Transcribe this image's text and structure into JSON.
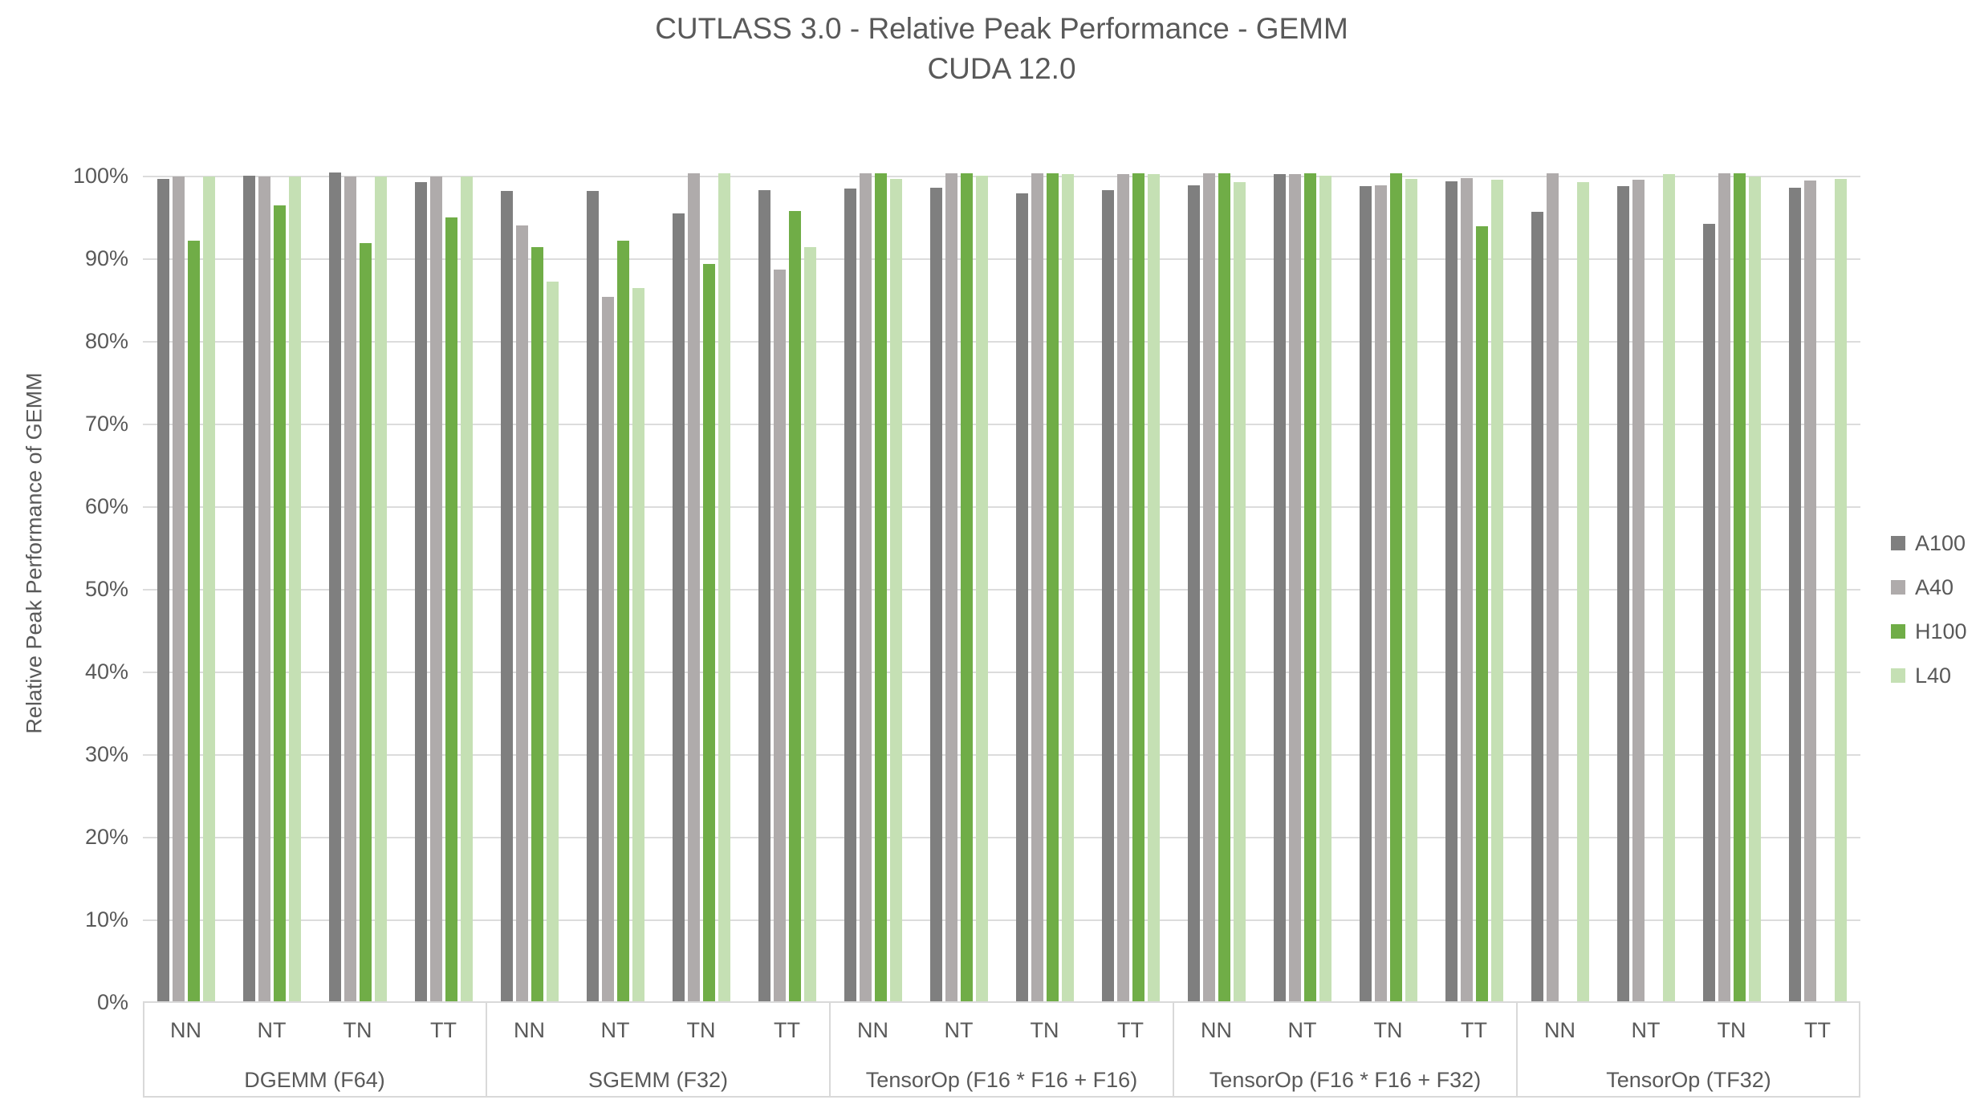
{
  "chart_data": {
    "type": "bar",
    "title": "CUTLASS 3.0 - Relative Peak Performance - GEMM",
    "subtitle": "CUDA 12.0",
    "ylabel": "Relative Peak Performance of GEMM",
    "ylim": [
      0,
      100
    ],
    "ytick_step": 10,
    "yticks": [
      "0%",
      "10%",
      "20%",
      "30%",
      "40%",
      "50%",
      "60%",
      "70%",
      "80%",
      "90%",
      "100%"
    ],
    "grid": true,
    "legend_position": "right",
    "categories": [
      "NN",
      "NT",
      "TN",
      "TT"
    ],
    "groups": [
      "DGEMM (F64)",
      "SGEMM (F32)",
      "TensorOp (F16 * F16 + F16)",
      "TensorOp (F16 * F16 + F32)",
      "TensorOp (TF32)"
    ],
    "value_unit": "percent",
    "series": [
      {
        "name": "A100",
        "color": "#7F7F7F",
        "values": [
          [
            99.7,
            100.1,
            100.5,
            99.3
          ],
          [
            98.3,
            98.3,
            95.5,
            98.4
          ],
          [
            98.5,
            98.6,
            98.0,
            98.4
          ],
          [
            98.9,
            100.3,
            98.8,
            99.4
          ],
          [
            95.7,
            98.8,
            94.3,
            98.6
          ]
        ]
      },
      {
        "name": "A40",
        "color": "#AFABAB",
        "values": [
          [
            100.0,
            100.0,
            100.0,
            100.0
          ],
          [
            94.1,
            85.4,
            100.4,
            88.7
          ],
          [
            100.4,
            100.4,
            100.4,
            100.3
          ],
          [
            100.4,
            100.3,
            98.9,
            99.8
          ],
          [
            100.4,
            99.6,
            100.4,
            99.5
          ]
        ]
      },
      {
        "name": "H100",
        "color": "#70AD47",
        "values": [
          [
            92.2,
            96.5,
            91.9,
            95.1
          ],
          [
            91.5,
            92.2,
            89.4,
            95.8
          ],
          [
            100.4,
            100.4,
            100.4,
            100.4
          ],
          [
            100.4,
            100.4,
            100.4,
            94.0
          ],
          [
            null,
            null,
            100.4,
            null
          ]
        ]
      },
      {
        "name": "L40",
        "color": "#C5E0B4",
        "values": [
          [
            100.0,
            100.0,
            100.0,
            100.0
          ],
          [
            87.3,
            86.5,
            100.4,
            91.5
          ],
          [
            99.7,
            100.1,
            100.3,
            100.3
          ],
          [
            99.3,
            100.1,
            99.7,
            99.6
          ],
          [
            99.3,
            100.3,
            100.0,
            99.7
          ]
        ]
      }
    ]
  }
}
